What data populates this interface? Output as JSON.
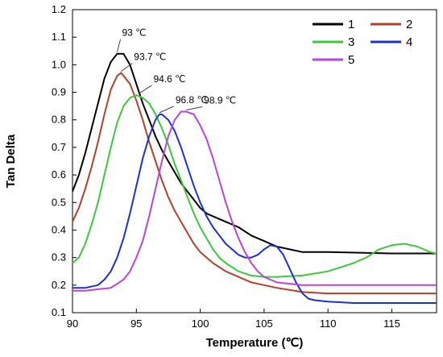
{
  "chart_data": {
    "type": "line",
    "title": "",
    "xlabel": "Temperature (℃)",
    "ylabel": "Tan Delta",
    "xlim": [
      90,
      118.5
    ],
    "ylim": [
      0.1,
      1.2
    ],
    "x_ticks": [
      90,
      95,
      100,
      105,
      110,
      115
    ],
    "y_ticks": [
      0.1,
      0.2,
      0.3,
      0.4,
      0.5,
      0.6,
      0.7,
      0.8,
      0.9,
      1.0,
      1.1,
      1.2
    ],
    "x_tick_labels": [
      "90",
      "95",
      "100",
      "105",
      "110",
      "115"
    ],
    "y_tick_labels": [
      "0.1",
      "0.2",
      "0.3",
      "0.4",
      "0.5",
      "0.6",
      "0.7",
      "0.8",
      "0.9",
      "1.0",
      "1.1",
      "1.2"
    ],
    "grid": false,
    "legend_position": "top-right",
    "series": [
      {
        "name": "1",
        "color": "#000000",
        "points": [
          [
            90,
            0.54
          ],
          [
            90.5,
            0.6
          ],
          [
            91,
            0.68
          ],
          [
            91.5,
            0.77
          ],
          [
            92,
            0.86
          ],
          [
            92.5,
            0.95
          ],
          [
            93,
            1.01
          ],
          [
            93.5,
            1.04
          ],
          [
            94,
            1.04
          ],
          [
            94.5,
            1.0
          ],
          [
            95,
            0.93
          ],
          [
            95.5,
            0.86
          ],
          [
            96,
            0.8
          ],
          [
            96.5,
            0.74
          ],
          [
            97,
            0.69
          ],
          [
            97.5,
            0.65
          ],
          [
            98,
            0.61
          ],
          [
            98.5,
            0.57
          ],
          [
            99,
            0.54
          ],
          [
            99.5,
            0.51
          ],
          [
            100,
            0.48
          ],
          [
            100.5,
            0.46
          ],
          [
            101,
            0.45
          ],
          [
            102,
            0.43
          ],
          [
            103,
            0.41
          ],
          [
            104,
            0.38
          ],
          [
            105,
            0.36
          ],
          [
            106,
            0.34
          ],
          [
            107,
            0.33
          ],
          [
            108,
            0.32
          ],
          [
            110,
            0.32
          ],
          [
            115,
            0.315
          ],
          [
            118.5,
            0.315
          ]
        ]
      },
      {
        "name": "2",
        "color": "#b5402a",
        "points": [
          [
            90,
            0.43
          ],
          [
            90.5,
            0.48
          ],
          [
            91,
            0.55
          ],
          [
            91.5,
            0.63
          ],
          [
            92,
            0.72
          ],
          [
            92.5,
            0.82
          ],
          [
            93,
            0.91
          ],
          [
            93.5,
            0.96
          ],
          [
            93.8,
            0.97
          ],
          [
            94,
            0.96
          ],
          [
            94.5,
            0.93
          ],
          [
            95,
            0.87
          ],
          [
            95.5,
            0.8
          ],
          [
            96,
            0.72
          ],
          [
            96.5,
            0.65
          ],
          [
            97,
            0.58
          ],
          [
            97.5,
            0.52
          ],
          [
            98,
            0.47
          ],
          [
            98.5,
            0.43
          ],
          [
            99,
            0.39
          ],
          [
            99.5,
            0.35
          ],
          [
            100,
            0.32
          ],
          [
            100.5,
            0.3
          ],
          [
            101,
            0.28
          ],
          [
            102,
            0.25
          ],
          [
            103,
            0.23
          ],
          [
            104,
            0.21
          ],
          [
            105,
            0.2
          ],
          [
            106,
            0.19
          ],
          [
            108,
            0.175
          ],
          [
            110,
            0.17
          ],
          [
            115,
            0.17
          ],
          [
            118.5,
            0.17
          ]
        ]
      },
      {
        "name": "3",
        "color": "#3cc83c",
        "points": [
          [
            90,
            0.28
          ],
          [
            90.5,
            0.3
          ],
          [
            91,
            0.35
          ],
          [
            91.5,
            0.42
          ],
          [
            92,
            0.5
          ],
          [
            92.5,
            0.6
          ],
          [
            93,
            0.7
          ],
          [
            93.5,
            0.79
          ],
          [
            94,
            0.85
          ],
          [
            94.5,
            0.88
          ],
          [
            95,
            0.89
          ],
          [
            95.5,
            0.88
          ],
          [
            96,
            0.86
          ],
          [
            96.5,
            0.82
          ],
          [
            97,
            0.77
          ],
          [
            97.5,
            0.71
          ],
          [
            98,
            0.64
          ],
          [
            98.5,
            0.58
          ],
          [
            99,
            0.52
          ],
          [
            99.5,
            0.46
          ],
          [
            100,
            0.41
          ],
          [
            100.5,
            0.37
          ],
          [
            101,
            0.33
          ],
          [
            101.5,
            0.3
          ],
          [
            102,
            0.28
          ],
          [
            103,
            0.25
          ],
          [
            104,
            0.235
          ],
          [
            105,
            0.23
          ],
          [
            106,
            0.23
          ],
          [
            108,
            0.235
          ],
          [
            110,
            0.25
          ],
          [
            112,
            0.28
          ],
          [
            113,
            0.3
          ],
          [
            114,
            0.33
          ],
          [
            115,
            0.345
          ],
          [
            116,
            0.35
          ],
          [
            117,
            0.34
          ],
          [
            118,
            0.32
          ],
          [
            118.5,
            0.315
          ]
        ]
      },
      {
        "name": "4",
        "color": "#1c2fd8",
        "points": [
          [
            90,
            0.19
          ],
          [
            91,
            0.19
          ],
          [
            92,
            0.2
          ],
          [
            92.5,
            0.22
          ],
          [
            93,
            0.25
          ],
          [
            93.5,
            0.3
          ],
          [
            94,
            0.37
          ],
          [
            94.5,
            0.46
          ],
          [
            95,
            0.56
          ],
          [
            95.5,
            0.66
          ],
          [
            96,
            0.74
          ],
          [
            96.5,
            0.8
          ],
          [
            96.8,
            0.82
          ],
          [
            97,
            0.82
          ],
          [
            97.5,
            0.8
          ],
          [
            98,
            0.76
          ],
          [
            98.5,
            0.7
          ],
          [
            99,
            0.63
          ],
          [
            99.5,
            0.56
          ],
          [
            100,
            0.5
          ],
          [
            100.5,
            0.45
          ],
          [
            101,
            0.41
          ],
          [
            101.5,
            0.38
          ],
          [
            102,
            0.35
          ],
          [
            102.5,
            0.33
          ],
          [
            103,
            0.31
          ],
          [
            103.5,
            0.3
          ],
          [
            104,
            0.3
          ],
          [
            104.5,
            0.31
          ],
          [
            105,
            0.33
          ],
          [
            105.5,
            0.345
          ],
          [
            106,
            0.34
          ],
          [
            106.5,
            0.31
          ],
          [
            107,
            0.26
          ],
          [
            107.5,
            0.21
          ],
          [
            108,
            0.17
          ],
          [
            108.5,
            0.15
          ],
          [
            109,
            0.145
          ],
          [
            110,
            0.14
          ],
          [
            112,
            0.135
          ],
          [
            115,
            0.135
          ],
          [
            118.5,
            0.135
          ]
        ]
      },
      {
        "name": "5",
        "color": "#b845e0",
        "points": [
          [
            90,
            0.18
          ],
          [
            91,
            0.18
          ],
          [
            92,
            0.185
          ],
          [
            93,
            0.19
          ],
          [
            94,
            0.22
          ],
          [
            94.5,
            0.25
          ],
          [
            95,
            0.3
          ],
          [
            95.5,
            0.36
          ],
          [
            96,
            0.45
          ],
          [
            96.5,
            0.55
          ],
          [
            97,
            0.65
          ],
          [
            97.5,
            0.74
          ],
          [
            98,
            0.8
          ],
          [
            98.5,
            0.83
          ],
          [
            98.9,
            0.83
          ],
          [
            99.5,
            0.82
          ],
          [
            100,
            0.78
          ],
          [
            100.5,
            0.73
          ],
          [
            101,
            0.66
          ],
          [
            101.5,
            0.58
          ],
          [
            102,
            0.5
          ],
          [
            102.5,
            0.43
          ],
          [
            103,
            0.37
          ],
          [
            103.5,
            0.32
          ],
          [
            104,
            0.28
          ],
          [
            104.5,
            0.25
          ],
          [
            105,
            0.23
          ],
          [
            105.5,
            0.22
          ],
          [
            106,
            0.21
          ],
          [
            107,
            0.205
          ],
          [
            108,
            0.2
          ],
          [
            110,
            0.2
          ],
          [
            115,
            0.2
          ],
          [
            118.5,
            0.2
          ]
        ]
      }
    ],
    "annotations": [
      {
        "text": "93 ℃",
        "x": 93.5,
        "y": 1.04
      },
      {
        "text": "93.7 ℃",
        "x": 93.8,
        "y": 0.97
      },
      {
        "text": "94.6 ℃",
        "x": 95.2,
        "y": 0.89
      },
      {
        "text": "96.8 ℃",
        "x": 96.8,
        "y": 0.82
      },
      {
        "text": "98.9 ℃",
        "x": 98.9,
        "y": 0.83
      }
    ]
  }
}
